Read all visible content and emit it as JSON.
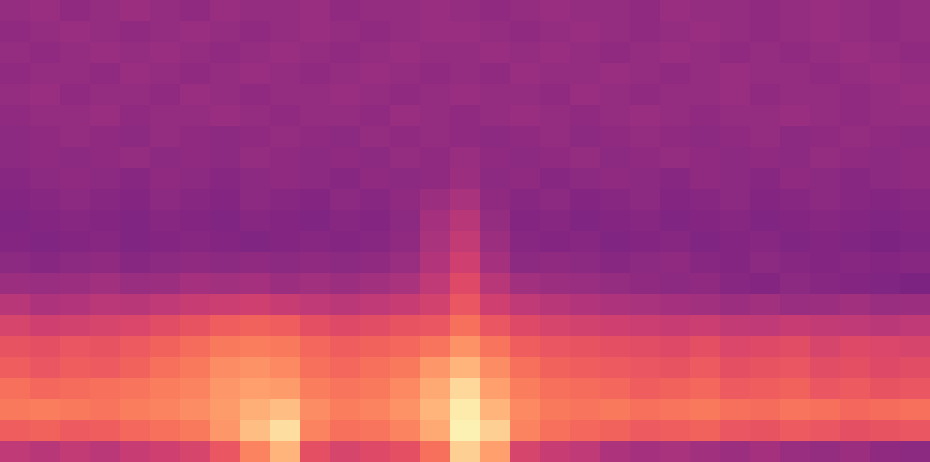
{
  "chart_data": {
    "type": "heatmap",
    "color": "magma",
    "tick_labels": false,
    "zlim": [
      0,
      100
    ],
    "cells": [
      [
        42,
        43,
        41,
        42,
        44,
        42,
        41,
        43,
        42,
        42,
        43,
        41,
        42,
        42,
        43,
        42,
        41,
        42,
        43,
        42,
        42,
        41,
        43,
        42,
        42,
        41,
        42,
        43,
        42,
        41,
        42
      ],
      [
        41,
        42,
        43,
        42,
        41,
        42,
        43,
        42,
        41,
        42,
        43,
        42,
        41,
        42,
        43,
        43,
        42,
        41,
        42,
        43,
        42,
        41,
        42,
        43,
        42,
        41,
        42,
        43,
        42,
        41,
        42
      ],
      [
        42,
        41,
        42,
        43,
        42,
        43,
        42,
        41,
        42,
        43,
        42,
        41,
        42,
        43,
        42,
        42,
        43,
        42,
        43,
        42,
        41,
        42,
        43,
        42,
        41,
        42,
        41,
        42,
        43,
        42,
        41
      ],
      [
        41,
        42,
        42,
        41,
        43,
        42,
        41,
        42,
        43,
        42,
        41,
        42,
        43,
        42,
        41,
        42,
        41,
        43,
        42,
        42,
        43,
        42,
        41,
        42,
        43,
        42,
        42,
        41,
        42,
        43,
        42
      ],
      [
        42,
        43,
        41,
        42,
        42,
        41,
        43,
        42,
        41,
        42,
        42,
        43,
        42,
        41,
        42,
        43,
        42,
        42,
        41,
        43,
        42,
        41,
        42,
        42,
        43,
        41,
        42,
        42,
        41,
        42,
        43
      ],
      [
        41,
        42,
        42,
        43,
        41,
        42,
        42,
        43,
        42,
        41,
        42,
        42,
        41,
        43,
        42,
        41,
        42,
        43,
        42,
        41,
        42,
        43,
        42,
        41,
        42,
        42,
        43,
        42,
        41,
        42,
        42
      ],
      [
        40,
        41,
        42,
        41,
        40,
        42,
        41,
        40,
        41,
        42,
        41,
        40,
        42,
        41,
        42,
        41,
        40,
        41,
        42,
        40,
        41,
        42,
        41,
        40,
        41,
        42,
        40,
        41,
        42,
        41,
        40
      ],
      [
        40,
        41,
        40,
        41,
        42,
        40,
        41,
        40,
        42,
        41,
        40,
        41,
        40,
        42,
        41,
        43,
        41,
        40,
        41,
        42,
        40,
        41,
        42,
        41,
        40,
        41,
        40,
        42,
        41,
        40,
        41
      ],
      [
        39,
        40,
        41,
        40,
        39,
        41,
        40,
        39,
        40,
        41,
        40,
        39,
        41,
        40,
        41,
        44,
        40,
        41,
        39,
        40,
        41,
        40,
        39,
        41,
        40,
        39,
        41,
        40,
        39,
        40,
        41
      ],
      [
        38,
        39,
        40,
        39,
        38,
        40,
        39,
        38,
        40,
        39,
        38,
        40,
        39,
        41,
        44,
        47,
        41,
        39,
        40,
        38,
        39,
        40,
        38,
        39,
        40,
        38,
        39,
        40,
        39,
        38,
        39
      ],
      [
        37,
        38,
        39,
        38,
        37,
        39,
        38,
        37,
        39,
        38,
        37,
        39,
        38,
        40,
        46,
        50,
        42,
        38,
        39,
        37,
        38,
        39,
        37,
        38,
        39,
        37,
        38,
        39,
        38,
        37,
        38
      ],
      [
        38,
        37,
        38,
        39,
        37,
        38,
        39,
        38,
        37,
        38,
        39,
        38,
        39,
        41,
        47,
        53,
        44,
        39,
        38,
        39,
        37,
        38,
        39,
        37,
        38,
        39,
        37,
        38,
        37,
        36,
        37
      ],
      [
        40,
        39,
        40,
        41,
        39,
        40,
        41,
        40,
        41,
        40,
        41,
        40,
        41,
        43,
        49,
        56,
        46,
        40,
        41,
        40,
        39,
        40,
        41,
        39,
        38,
        40,
        39,
        38,
        39,
        38,
        39
      ],
      [
        44,
        43,
        44,
        45,
        43,
        44,
        46,
        45,
        46,
        44,
        45,
        44,
        45,
        47,
        52,
        60,
        50,
        45,
        44,
        43,
        42,
        41,
        40,
        41,
        39,
        38,
        40,
        39,
        38,
        37,
        36
      ],
      [
        50,
        48,
        49,
        51,
        50,
        52,
        54,
        55,
        56,
        54,
        52,
        51,
        52,
        54,
        57,
        64,
        56,
        52,
        50,
        49,
        48,
        47,
        46,
        45,
        44,
        45,
        43,
        44,
        45,
        43,
        44
      ],
      [
        58,
        56,
        57,
        58,
        59,
        61,
        63,
        66,
        67,
        66,
        62,
        60,
        61,
        63,
        64,
        70,
        64,
        60,
        58,
        57,
        56,
        55,
        54,
        55,
        53,
        52,
        54,
        53,
        52,
        51,
        52
      ],
      [
        63,
        62,
        64,
        63,
        65,
        67,
        69,
        72,
        73,
        72,
        68,
        66,
        67,
        68,
        71,
        77,
        71,
        66,
        64,
        63,
        62,
        61,
        60,
        62,
        59,
        60,
        61,
        58,
        60,
        59,
        58
      ],
      [
        66,
        64,
        66,
        65,
        67,
        70,
        72,
        76,
        77,
        75,
        70,
        68,
        70,
        72,
        78,
        84,
        76,
        70,
        67,
        66,
        65,
        64,
        63,
        65,
        62,
        63,
        64,
        61,
        62,
        60,
        61
      ],
      [
        70,
        68,
        69,
        70,
        71,
        73,
        74,
        78,
        80,
        79,
        73,
        71,
        72,
        75,
        82,
        92,
        80,
        73,
        70,
        69,
        68,
        66,
        67,
        68,
        65,
        66,
        67,
        64,
        65,
        63,
        64
      ],
      [
        72,
        73,
        72,
        71,
        73,
        74,
        76,
        79,
        83,
        86,
        76,
        73,
        74,
        77,
        84,
        96,
        84,
        75,
        72,
        71,
        72,
        70,
        71,
        72,
        70,
        69,
        71,
        70,
        68,
        69,
        70
      ],
      [
        66,
        67,
        65,
        66,
        68,
        70,
        72,
        78,
        86,
        93,
        74,
        70,
        71,
        74,
        82,
        97,
        90,
        74,
        70,
        68,
        67,
        65,
        66,
        67,
        64,
        63,
        65,
        64,
        62,
        63,
        64
      ],
      [
        52,
        50,
        53,
        51,
        54,
        56,
        58,
        64,
        74,
        84,
        62,
        58,
        60,
        62,
        70,
        90,
        80,
        58,
        54,
        52,
        48,
        46,
        47,
        45,
        44,
        46,
        43,
        42,
        44,
        41,
        40
      ]
    ]
  }
}
